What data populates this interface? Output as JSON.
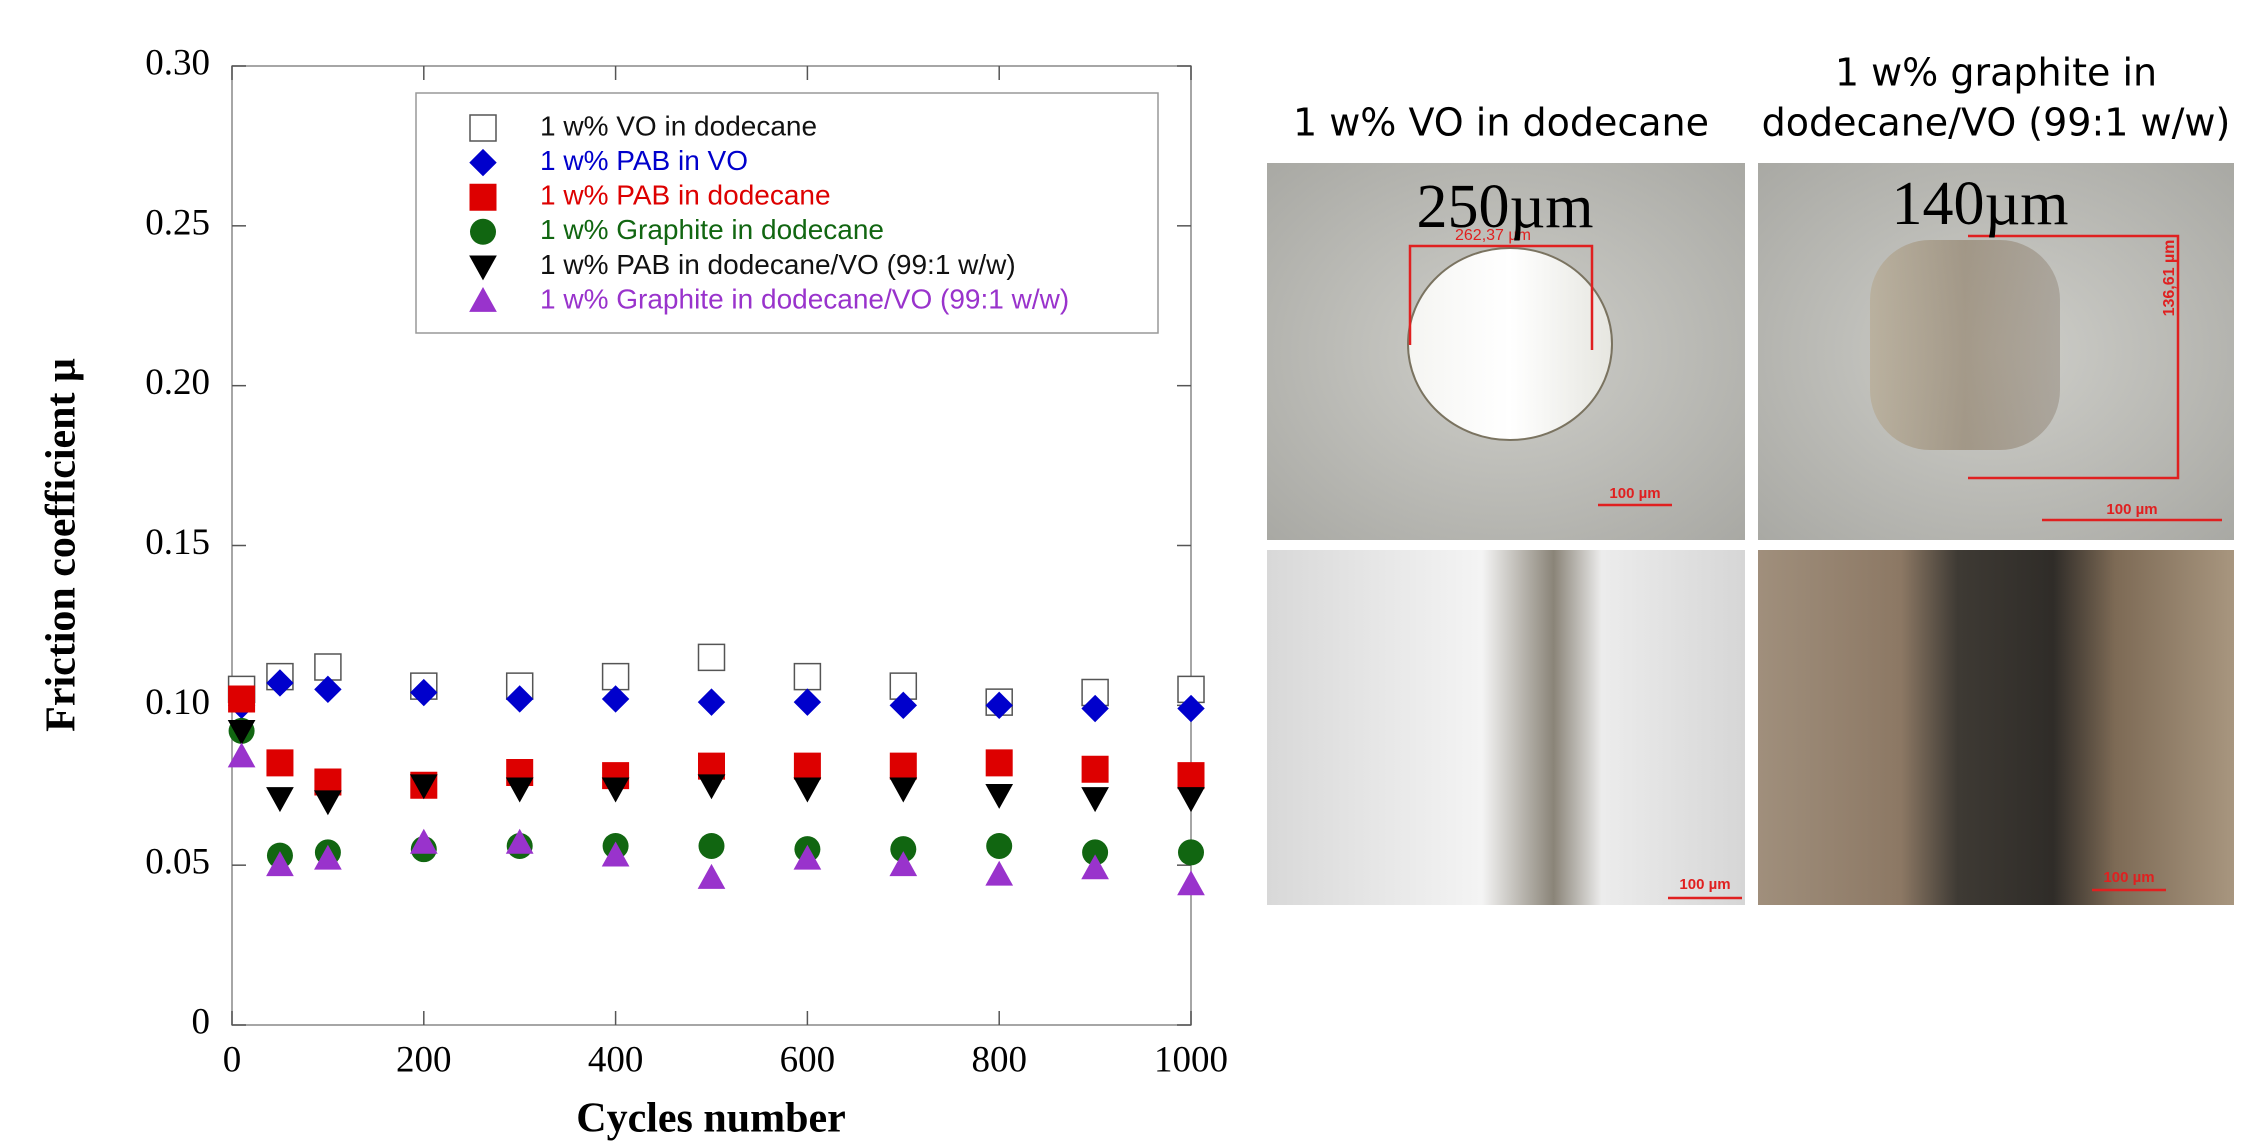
{
  "chart_data": {
    "type": "scatter",
    "xlabel": "Cycles number",
    "ylabel": "Friction coefficient μ",
    "x": [
      10,
      50,
      100,
      200,
      300,
      400,
      500,
      600,
      700,
      800,
      900,
      1000
    ],
    "xlim": [
      0,
      1000
    ],
    "xticks": [
      0,
      200,
      400,
      600,
      800,
      1000
    ],
    "ylim": [
      0,
      0.3
    ],
    "yticks": [
      0,
      0.05,
      {
        "value": 0.1,
        "label": "0.10"
      },
      0.15,
      {
        "value": 0.2,
        "label": "0.20"
      },
      0.25,
      {
        "value": 0.3,
        "label": "0.30"
      }
    ],
    "legend": "upper right",
    "series": [
      {
        "name": "1 w% VO in dodecane",
        "color": "#000000",
        "marker": "square-open",
        "values": [
          0.105,
          0.109,
          0.112,
          0.106,
          0.106,
          0.109,
          0.115,
          0.109,
          0.106,
          0.101,
          0.104,
          0.105
        ]
      },
      {
        "name": "1 w% PAB in VO",
        "color": "#0000cc",
        "marker": "diamond",
        "values": [
          0.1,
          0.107,
          0.105,
          0.104,
          0.102,
          0.102,
          0.101,
          0.101,
          0.1,
          0.1,
          0.099,
          0.099
        ]
      },
      {
        "name": "1 w% PAB in dodecane",
        "color": "#dd0000",
        "marker": "square",
        "values": [
          0.102,
          0.082,
          0.076,
          0.075,
          0.079,
          0.078,
          0.081,
          0.081,
          0.081,
          0.082,
          0.08,
          0.078
        ]
      },
      {
        "name": "1 w% Graphite in dodecane",
        "color": "#116611",
        "marker": "circle",
        "values": [
          0.092,
          0.053,
          0.054,
          0.055,
          0.056,
          0.056,
          0.056,
          0.055,
          0.055,
          0.056,
          0.054,
          0.054
        ]
      },
      {
        "name": "1 w% PAB in dodecane/VO (99:1 w/w)",
        "color": "#000000",
        "marker": "triangle-down",
        "values": [
          0.092,
          0.071,
          0.07,
          0.075,
          0.074,
          0.074,
          0.075,
          0.074,
          0.074,
          0.072,
          0.071,
          0.071
        ]
      },
      {
        "name": "1 w% Graphite in dodecane/VO (99:1 w/w)",
        "color": "#9933cc",
        "marker": "triangle-up",
        "values": [
          0.084,
          0.05,
          0.052,
          0.057,
          0.057,
          0.053,
          0.046,
          0.052,
          0.05,
          0.047,
          0.049,
          0.044
        ]
      }
    ]
  },
  "panels": [
    {
      "title": "1 w% VO in dodecane",
      "scar": "250µm",
      "measure": "262,37 µm",
      "scale_top": "100 µm",
      "scale_bottom": "100 µm"
    },
    {
      "title_lines": [
        "1 w% graphite in",
        "dodecane/VO (99:1 w/w)"
      ],
      "scar": "140µm",
      "measure": "136,61 µm",
      "scale_top": "100 µm",
      "scale_bottom": "100 µm"
    }
  ]
}
